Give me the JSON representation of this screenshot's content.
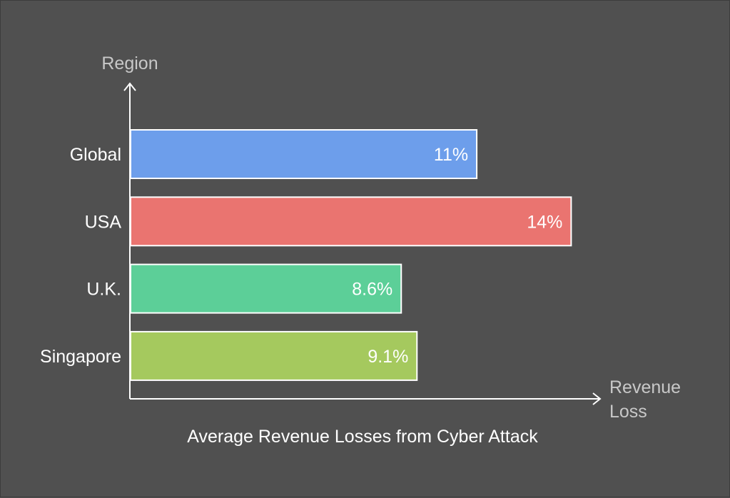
{
  "chart_data": {
    "type": "bar",
    "orientation": "horizontal",
    "title": "Average Revenue Losses from Cyber Attack",
    "ylabel": "Region",
    "xlabel": [
      "Revenue",
      "Loss"
    ],
    "categories": [
      "Global",
      "USA",
      "U.K.",
      "Singapore"
    ],
    "values": [
      11,
      14,
      8.6,
      9.1
    ],
    "value_labels": [
      "11%",
      "14%",
      "8.6%",
      "9.1%"
    ],
    "colors": [
      "#6d9eeb",
      "#ea7470",
      "#5ccf98",
      "#a5c95e"
    ],
    "xlim": [
      0,
      17
    ],
    "grid": false,
    "legend": "none"
  }
}
